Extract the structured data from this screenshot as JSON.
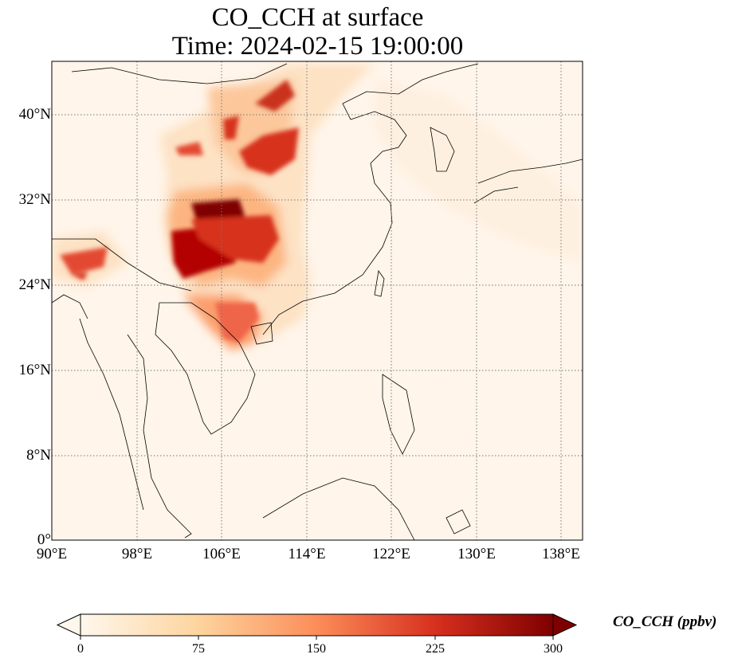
{
  "title": {
    "line1": "CO_CCH at surface",
    "line2": "Time: 2024-02-15 19:00:00"
  },
  "map": {
    "lon_range": [
      90,
      140
    ],
    "lat_range": [
      0,
      45
    ],
    "gridlines": "dotted",
    "x_ticks": [
      "90°E",
      "98°E",
      "106°E",
      "114°E",
      "122°E",
      "130°E",
      "138°E"
    ],
    "y_ticks": [
      "0°",
      "8°N",
      "16°N",
      "24°N",
      "32°N",
      "40°N"
    ],
    "colormap": "OrRd"
  },
  "colorbar": {
    "label": "CO_CCH (ppbv)",
    "ticks": [
      "0",
      "75",
      "150",
      "225",
      "300"
    ],
    "range": [
      0,
      300
    ],
    "extend": "both",
    "colors": [
      "#fff7ec",
      "#fdd49e",
      "#fc8d59",
      "#d7301f",
      "#7f0000"
    ]
  }
}
